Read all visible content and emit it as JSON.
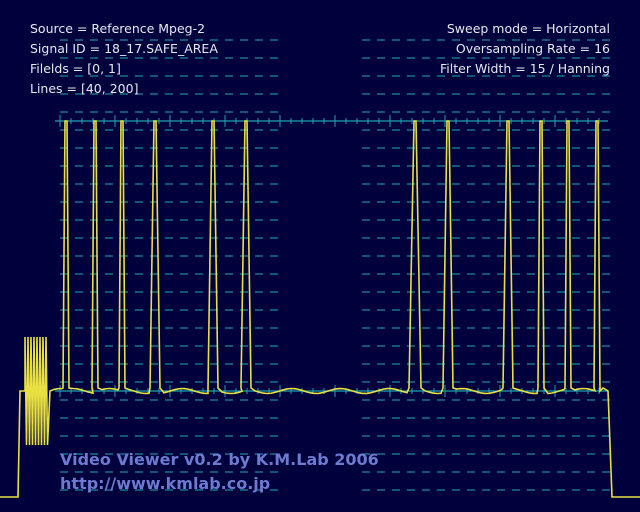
{
  "info_left": [
    "Source = Reference Mpeg-2",
    "Signal ID = 18_17.SAFE_AREA",
    "Filelds = [0, 1]",
    "Lines = [40, 200]"
  ],
  "info_right": [
    "Sweep mode = Horizontal",
    "Oversampling Rate = 16",
    "Filter Width = 15 / Hanning"
  ],
  "watermark": {
    "title": "Video Viewer v0.2 by K.M.Lab 2006",
    "url": "http://www.kmlab.co.jp"
  }
}
